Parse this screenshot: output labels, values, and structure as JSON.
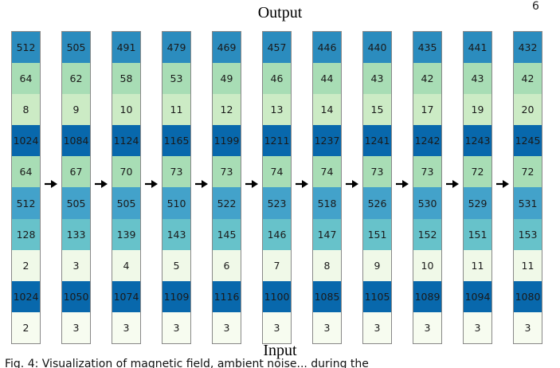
{
  "page_number": "6",
  "title_top": "Output",
  "title_bottom": "Input",
  "caption": "Fig. 4: Visualization of magnetic field, ambient noise... during the",
  "columns": [
    [
      "512",
      "64",
      "8",
      "1024",
      "64",
      "512",
      "128",
      "2",
      "1024",
      "2"
    ],
    [
      "505",
      "62",
      "9",
      "1084",
      "67",
      "505",
      "133",
      "3",
      "1050",
      "3"
    ],
    [
      "491",
      "58",
      "10",
      "1124",
      "70",
      "505",
      "139",
      "4",
      "1074",
      "3"
    ],
    [
      "479",
      "53",
      "11",
      "1165",
      "73",
      "510",
      "143",
      "5",
      "1109",
      "3"
    ],
    [
      "469",
      "49",
      "12",
      "1199",
      "73",
      "522",
      "145",
      "6",
      "1116",
      "3"
    ],
    [
      "457",
      "46",
      "13",
      "1211",
      "74",
      "523",
      "146",
      "7",
      "1100",
      "3"
    ],
    [
      "446",
      "44",
      "14",
      "1237",
      "74",
      "518",
      "147",
      "8",
      "1085",
      "3"
    ],
    [
      "440",
      "43",
      "15",
      "1241",
      "73",
      "526",
      "151",
      "9",
      "1105",
      "3"
    ],
    [
      "435",
      "42",
      "17",
      "1242",
      "73",
      "530",
      "152",
      "10",
      "1089",
      "3"
    ],
    [
      "441",
      "43",
      "19",
      "1243",
      "72",
      "529",
      "151",
      "11",
      "1094",
      "3"
    ],
    [
      "432",
      "42",
      "20",
      "1245",
      "72",
      "531",
      "153",
      "11",
      "1080",
      "3"
    ]
  ],
  "row_colors": [
    "#2b8cbe",
    "#a8ddb5",
    "#ccebc5",
    "#0868ac",
    "#a8ddb5",
    "#43a2ca",
    "#67c2ca",
    "#f0f9e8",
    "#0868ac",
    "#f7fcf0"
  ],
  "arrow_icon": "right-arrow-icon"
}
